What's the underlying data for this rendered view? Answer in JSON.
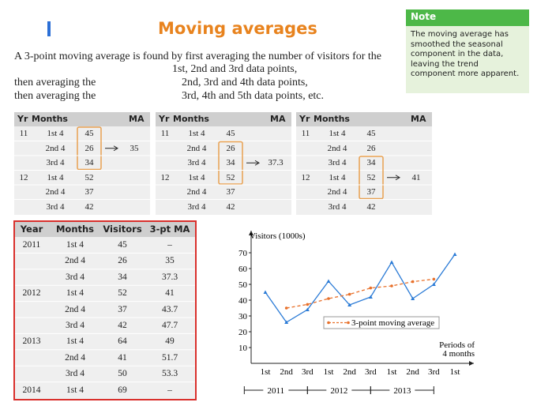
{
  "title": "Moving averages",
  "intro": {
    "line1": "A 3-point moving average is found by first averaging the number of visitors for the",
    "line2": "1st, 2nd and 3rd data points,",
    "rows": [
      [
        "then averaging the",
        "2nd, 3rd and 4th data points,"
      ],
      [
        "then averaging the",
        "3rd, 4th and 5th data points, etc."
      ]
    ]
  },
  "note": {
    "title": "Note",
    "body": "The moving average has smoothed the seasonal component in the data, leaving the trend component more apparent."
  },
  "small_tables": [
    {
      "header": [
        "Yr",
        "Months",
        "MA"
      ],
      "rows": [
        [
          "11",
          "1st 4",
          45,
          null
        ],
        [
          null,
          "2nd 4",
          26,
          35
        ],
        [
          null,
          "3rd 4",
          34,
          null
        ],
        [
          "12",
          "1st 4",
          52,
          null
        ],
        [
          null,
          "2nd 4",
          37,
          null
        ],
        [
          null,
          "3rd 4",
          42,
          null
        ]
      ]
    },
    {
      "header": [
        "Yr",
        "Months",
        "MA"
      ],
      "rows": [
        [
          "11",
          "1st 4",
          45,
          null
        ],
        [
          null,
          "2nd 4",
          26,
          null
        ],
        [
          null,
          "3rd 4",
          34,
          37.3
        ],
        [
          "12",
          "1st 4",
          52,
          null
        ],
        [
          null,
          "2nd 4",
          37,
          null
        ],
        [
          null,
          "3rd 4",
          42,
          null
        ]
      ]
    },
    {
      "header": [
        "Yr",
        "Months",
        "MA"
      ],
      "rows": [
        [
          "11",
          "1st 4",
          45,
          null
        ],
        [
          null,
          "2nd 4",
          26,
          null
        ],
        [
          null,
          "3rd 4",
          34,
          null
        ],
        [
          "12",
          "1st 4",
          52,
          41
        ],
        [
          null,
          "2nd 4",
          37,
          null
        ],
        [
          null,
          "3rd 4",
          42,
          null
        ]
      ]
    }
  ],
  "table": {
    "header": [
      "Year",
      "Months",
      "Visitors",
      "3-pt MA"
    ],
    "rows": [
      [
        "2011",
        "1st 4",
        45,
        "–"
      ],
      [
        null,
        "2nd 4",
        26,
        35
      ],
      [
        null,
        "3rd 4",
        34,
        37.3
      ],
      [
        "2012",
        "1st 4",
        52,
        41
      ],
      [
        null,
        "2nd 4",
        37,
        43.7
      ],
      [
        null,
        "3rd 4",
        42,
        47.7
      ],
      [
        "2013",
        "1st 4",
        64,
        49
      ],
      [
        null,
        "2nd 4",
        41,
        51.7
      ],
      [
        null,
        "3rd 4",
        50,
        53.3
      ],
      [
        "2014",
        "1st 4",
        69,
        "–"
      ]
    ]
  },
  "chart_data": {
    "type": "line",
    "ylabel": "Visitors (1000s)",
    "xlabel": [
      "Periods of",
      "4 months"
    ],
    "categories": [
      "1st",
      "2nd",
      "3rd",
      "1st",
      "2nd",
      "3rd",
      "1st",
      "2nd",
      "3rd",
      "1st"
    ],
    "year_labels": [
      "2011",
      "2012",
      "2013"
    ],
    "ylim": [
      0,
      84
    ],
    "yticks": [
      10,
      20,
      30,
      40,
      50,
      60,
      70
    ],
    "series": [
      {
        "color": "#2b7bd6",
        "values": [
          45,
          26,
          34,
          52,
          37,
          42,
          64,
          41,
          50,
          69
        ]
      },
      {
        "name": "3-point moving average",
        "color": "#e8702a",
        "dashed": true,
        "values": [
          null,
          35,
          37.3,
          41,
          43.7,
          47.7,
          49,
          51.7,
          53.3,
          null
        ]
      }
    ]
  }
}
